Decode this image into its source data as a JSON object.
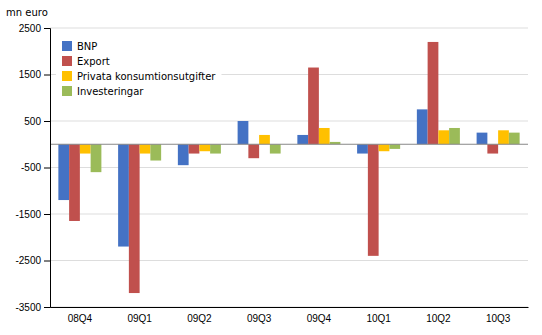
{
  "chart_data": {
    "type": "bar",
    "ylabel": "mn euro",
    "categories": [
      "08Q4",
      "09Q1",
      "09Q2",
      "09Q3",
      "09Q4",
      "10Q1",
      "10Q2",
      "10Q3"
    ],
    "series": [
      {
        "name": "BNP",
        "color": "#4472C4",
        "values": [
          -1200,
          -2200,
          -450,
          500,
          200,
          -200,
          750,
          250
        ]
      },
      {
        "name": "Export",
        "color": "#C0504D",
        "values": [
          -1650,
          -3200,
          -200,
          -300,
          1650,
          -2400,
          2200,
          -200
        ]
      },
      {
        "name": "Privata konsumtionsutgifter",
        "color": "#FFC000",
        "values": [
          -200,
          -200,
          -150,
          200,
          350,
          -150,
          300,
          300
        ]
      },
      {
        "name": "Investeringar",
        "color": "#9BBB59",
        "values": [
          -600,
          -350,
          -200,
          -200,
          50,
          -100,
          350,
          250
        ]
      }
    ],
    "ylim": [
      -3500,
      2500
    ],
    "yticks": [
      -3500,
      -2500,
      -1500,
      -500,
      500,
      1500,
      2500
    ],
    "grid": true,
    "legend": "upper left"
  }
}
